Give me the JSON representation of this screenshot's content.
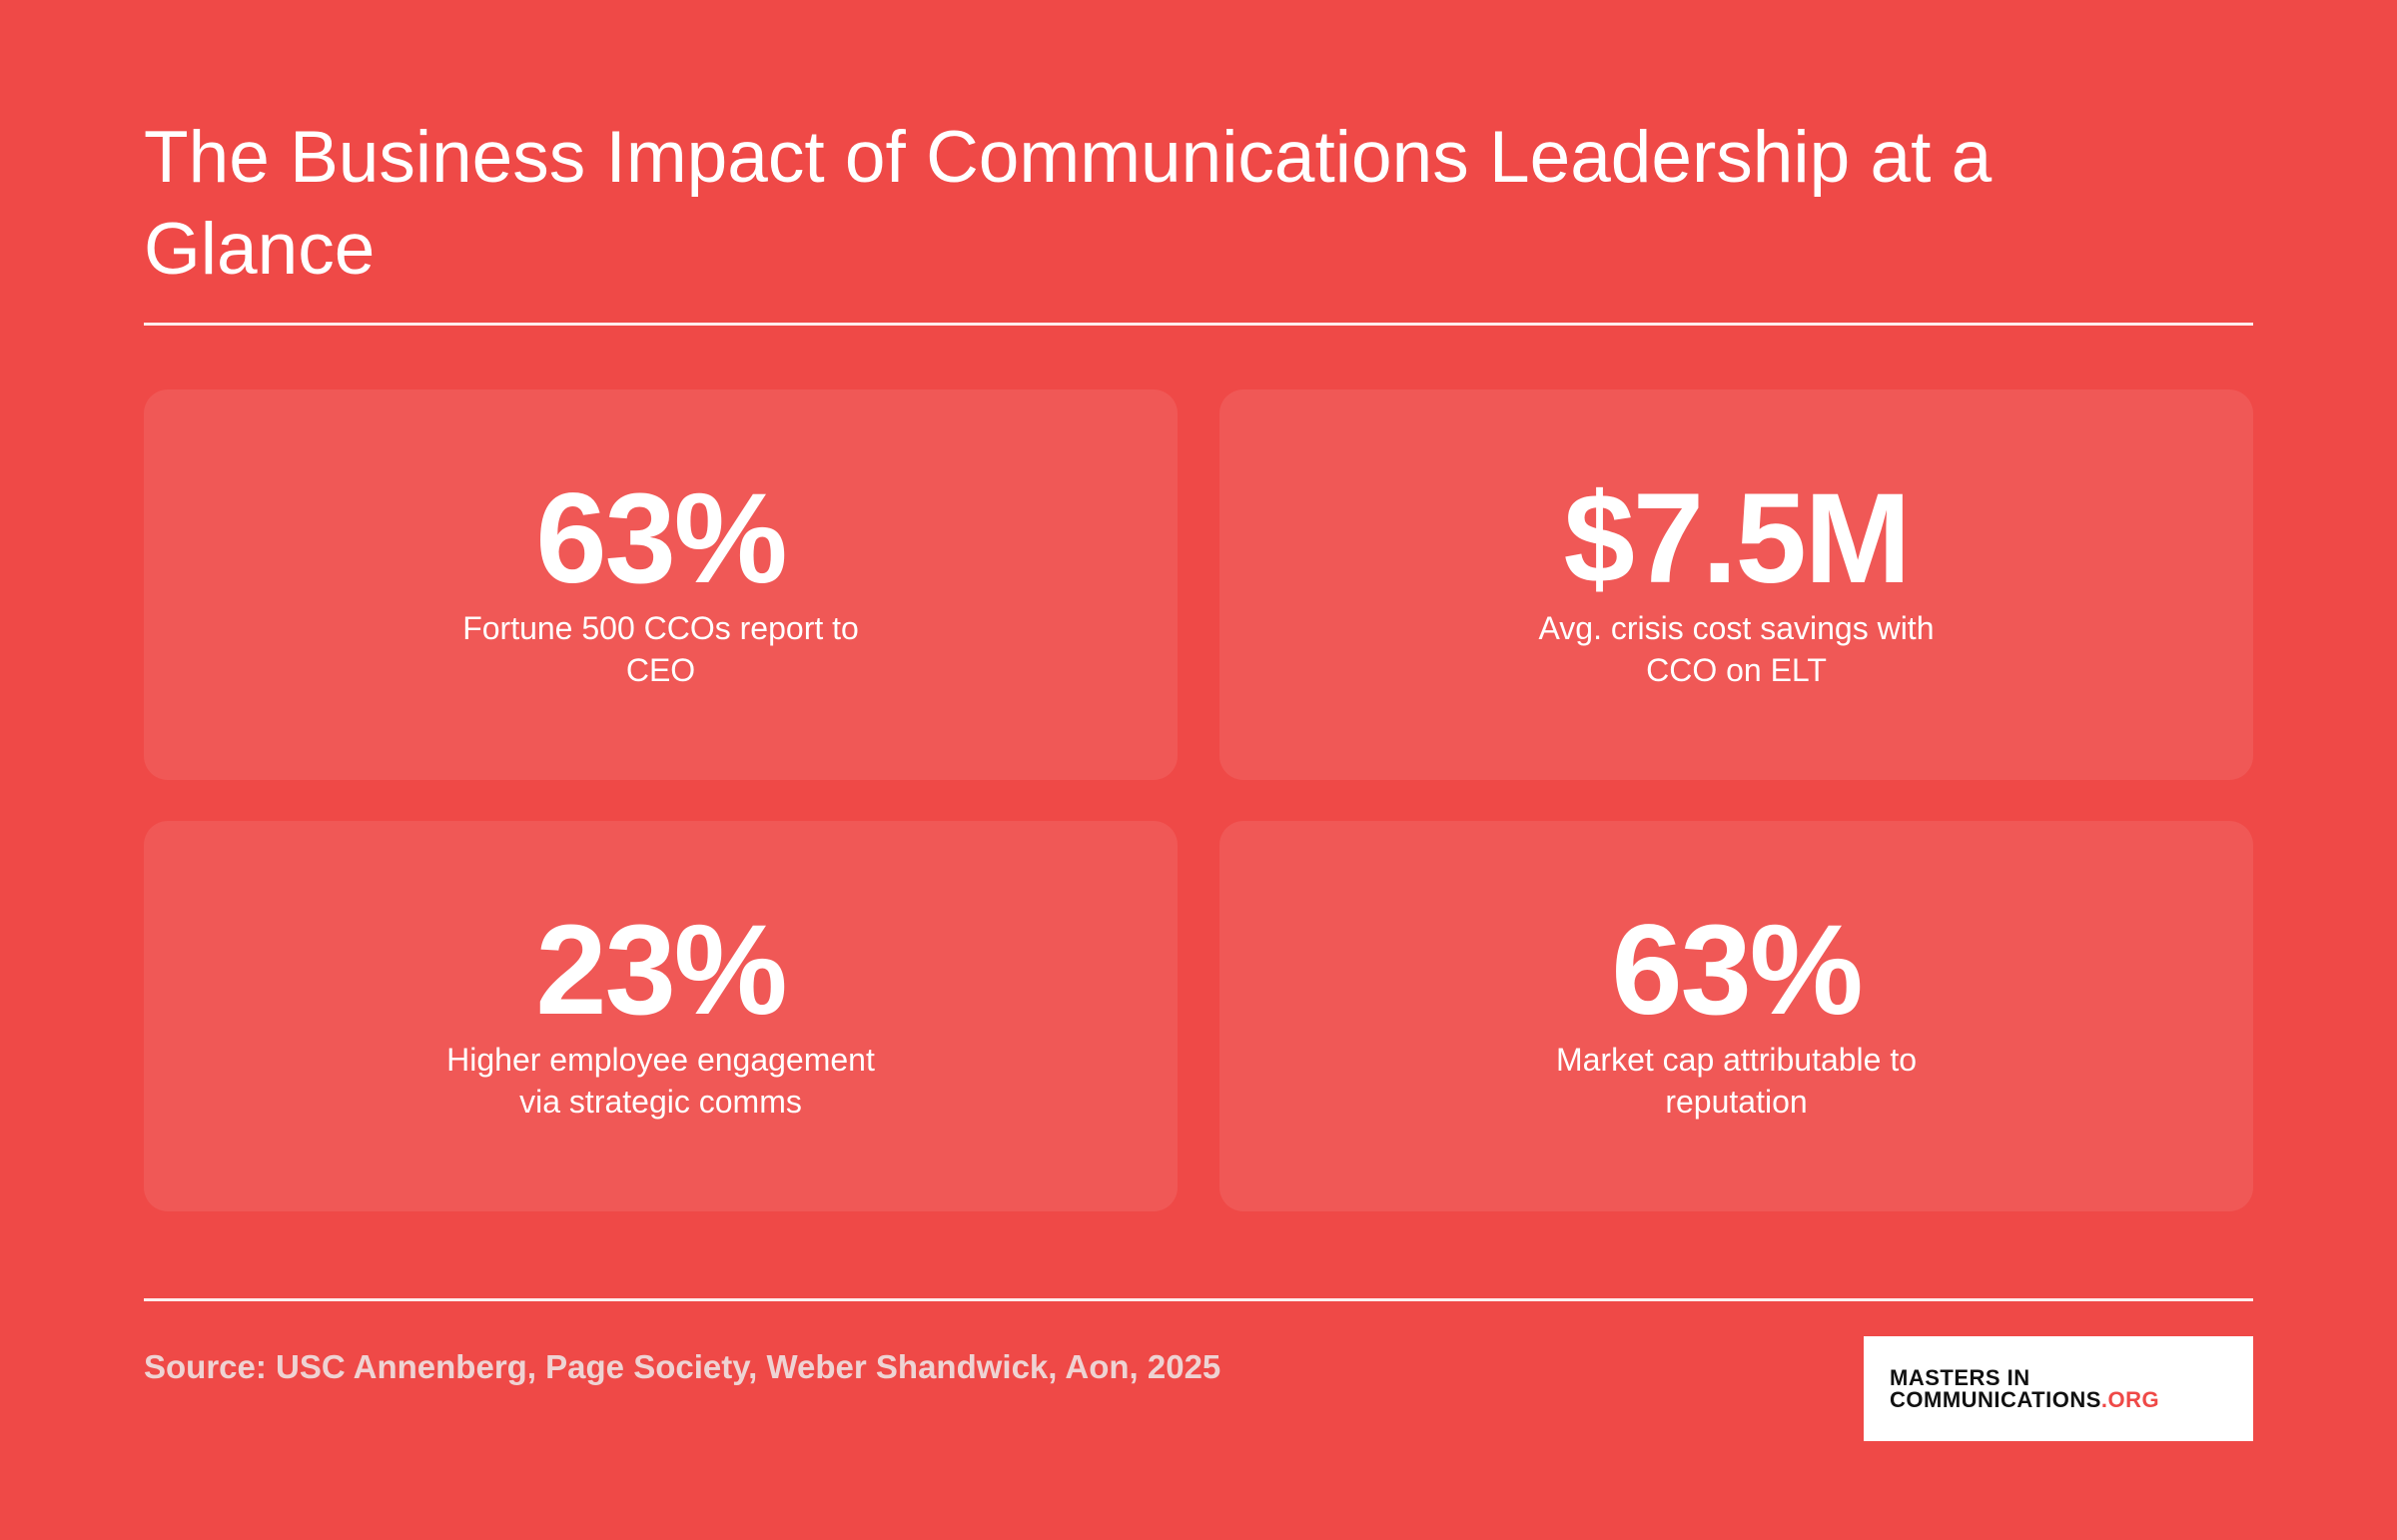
{
  "header": {
    "title": "The Business Impact of Communications Leadership at a Glance"
  },
  "stats": [
    {
      "value": "63%",
      "label": "Fortune 500 CCOs report to CEO"
    },
    {
      "value": "$7.5M",
      "label": "Avg. crisis cost savings with CCO on ELT"
    },
    {
      "value": "23%",
      "label": "Higher employee engagement via strategic comms"
    },
    {
      "value": "63%",
      "label": "Market cap attributable to reputation"
    }
  ],
  "footer": {
    "source": "Source: USC Annenberg, Page Society, Weber Shandwick, Aon, 2025"
  },
  "logo": {
    "line1": "MASTERS IN",
    "line2": "COMMUNICATIONS",
    "suffix": ".ORG"
  }
}
